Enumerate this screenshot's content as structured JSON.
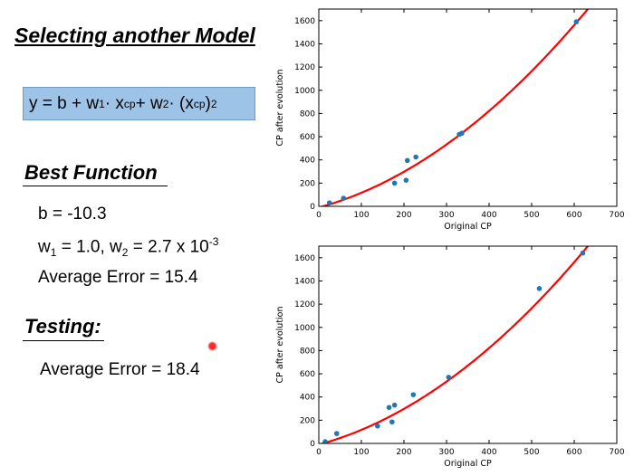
{
  "slide": {
    "title": "Selecting another Model",
    "formula": {
      "lhs": "y = b + w",
      "w1_sub": "1",
      "mid1": " · x",
      "cp_sub1": "cp",
      "mid2": " + w",
      "w2_sub": "2",
      "mid3": " · (x",
      "cp_sub2": "cp",
      "close": ")",
      "sq": "2"
    },
    "best_function": {
      "heading": "Best Function",
      "b_line": "b = -10.3",
      "w_line": {
        "w1": "w",
        "w1_sub": "1",
        "w1_val": " = 1.0, w",
        "w2_sub": "2",
        "w2_val": " = 2.7 x 10",
        "exp": "-3"
      },
      "avg_error": "Average Error = 15.4"
    },
    "testing": {
      "heading": "Testing:",
      "avg_error": "Average Error = 18.4"
    }
  },
  "chart_data": [
    {
      "type": "scatter",
      "xlabel": "Original CP",
      "ylabel": "CP after evolution",
      "xlim": [
        0,
        700
      ],
      "ylim": [
        0,
        1700
      ],
      "xticks": [
        0,
        100,
        200,
        300,
        400,
        500,
        600,
        700
      ],
      "yticks": [
        0,
        200,
        400,
        600,
        800,
        1000,
        1200,
        1400,
        1600
      ],
      "points": [
        {
          "x": 25,
          "y": 30
        },
        {
          "x": 58,
          "y": 70
        },
        {
          "x": 178,
          "y": 200
        },
        {
          "x": 205,
          "y": 225
        },
        {
          "x": 208,
          "y": 395
        },
        {
          "x": 228,
          "y": 425
        },
        {
          "x": 330,
          "y": 620
        },
        {
          "x": 336,
          "y": 630
        },
        {
          "x": 605,
          "y": 1590
        }
      ],
      "curve": {
        "b": -10.3,
        "w1": 1.0,
        "w2": 0.0027
      },
      "point_color": "#1f77b4",
      "curve_color": "#ff0000"
    },
    {
      "type": "scatter",
      "xlabel": "Original CP",
      "ylabel": "CP after evolution",
      "xlim": [
        0,
        700
      ],
      "ylim": [
        0,
        1700
      ],
      "xticks": [
        0,
        100,
        200,
        300,
        400,
        500,
        600,
        700
      ],
      "yticks": [
        0,
        200,
        400,
        600,
        800,
        1000,
        1200,
        1400,
        1600
      ],
      "points": [
        {
          "x": 15,
          "y": 15
        },
        {
          "x": 42,
          "y": 85
        },
        {
          "x": 138,
          "y": 150
        },
        {
          "x": 165,
          "y": 310
        },
        {
          "x": 172,
          "y": 185
        },
        {
          "x": 178,
          "y": 330
        },
        {
          "x": 222,
          "y": 420
        },
        {
          "x": 305,
          "y": 570
        },
        {
          "x": 518,
          "y": 1335
        },
        {
          "x": 620,
          "y": 1640
        }
      ],
      "curve": {
        "b": -10.3,
        "w1": 1.0,
        "w2": 0.0027
      },
      "point_color": "#1f77b4",
      "curve_color": "#ff0000"
    }
  ]
}
